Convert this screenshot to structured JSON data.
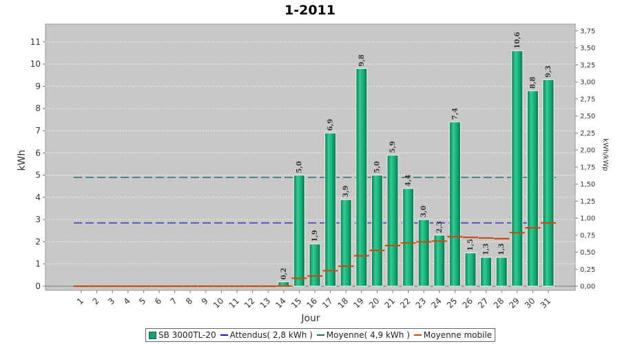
{
  "chart_data": {
    "type": "bar",
    "title": "1-2011",
    "xlabel": "Jour",
    "ylabel": "kWh",
    "y2label": "kWh/kWp",
    "ylim": [
      0,
      11.8
    ],
    "y2lim": [
      0,
      3.85
    ],
    "yticks": [
      "0",
      "1",
      "2",
      "3",
      "4",
      "5",
      "6",
      "7",
      "8",
      "9",
      "10",
      "11"
    ],
    "y2ticks": [
      "0,00",
      "0,25",
      "0,50",
      "0,75",
      "1,00",
      "1,25",
      "1,50",
      "1,75",
      "2,00",
      "2,25",
      "2,50",
      "2,75",
      "3,00",
      "3,25",
      "3,50",
      "3,75"
    ],
    "categories": [
      "1",
      "2",
      "3",
      "4",
      "5",
      "6",
      "7",
      "8",
      "9",
      "10",
      "11",
      "12",
      "13",
      "14",
      "15",
      "16",
      "17",
      "18",
      "19",
      "20",
      "21",
      "22",
      "23",
      "24",
      "25",
      "26",
      "27",
      "28",
      "29",
      "30",
      "31"
    ],
    "series": [
      {
        "name": "SB 3000TL-20",
        "type": "bar",
        "color": "#16a070",
        "values": [
          0,
          0,
          0,
          0,
          0,
          0,
          0,
          0,
          0,
          0,
          0,
          0,
          0,
          0.2,
          5.0,
          1.9,
          6.9,
          3.9,
          9.8,
          5.0,
          5.9,
          4.4,
          3.0,
          2.3,
          7.4,
          1.5,
          1.3,
          1.3,
          10.6,
          8.8,
          9.3
        ],
        "labels": [
          "",
          "",
          "",
          "",
          "",
          "",
          "",
          "",
          "",
          "",
          "",
          "",
          "",
          "0,2",
          "5,0",
          "1,9",
          "6,9",
          "3,9",
          "9,8",
          "5,0",
          "5,9",
          "4,4",
          "3,0",
          "2,3",
          "7,4",
          "1,5",
          "1,3",
          "1,3",
          "10,6",
          "8,8",
          "9,3"
        ]
      },
      {
        "name": "Attendus( 2,8 kWh )",
        "type": "hline",
        "color": "#1a1aa8",
        "value": 2.85
      },
      {
        "name": "Moyenne( 4,9 kWh )",
        "type": "hline",
        "color": "#1e6b66",
        "value": 4.9
      },
      {
        "name": "Moyenne mobile",
        "type": "step",
        "color": "#cc4a14",
        "values": [
          0,
          0,
          0,
          0,
          0,
          0,
          0,
          0,
          0,
          0,
          0,
          0,
          0,
          0.01,
          0.36,
          0.46,
          0.7,
          0.9,
          1.37,
          1.61,
          1.83,
          1.95,
          2.0,
          2.03,
          2.23,
          2.2,
          2.17,
          2.14,
          2.41,
          2.63,
          2.85
        ]
      }
    ]
  }
}
